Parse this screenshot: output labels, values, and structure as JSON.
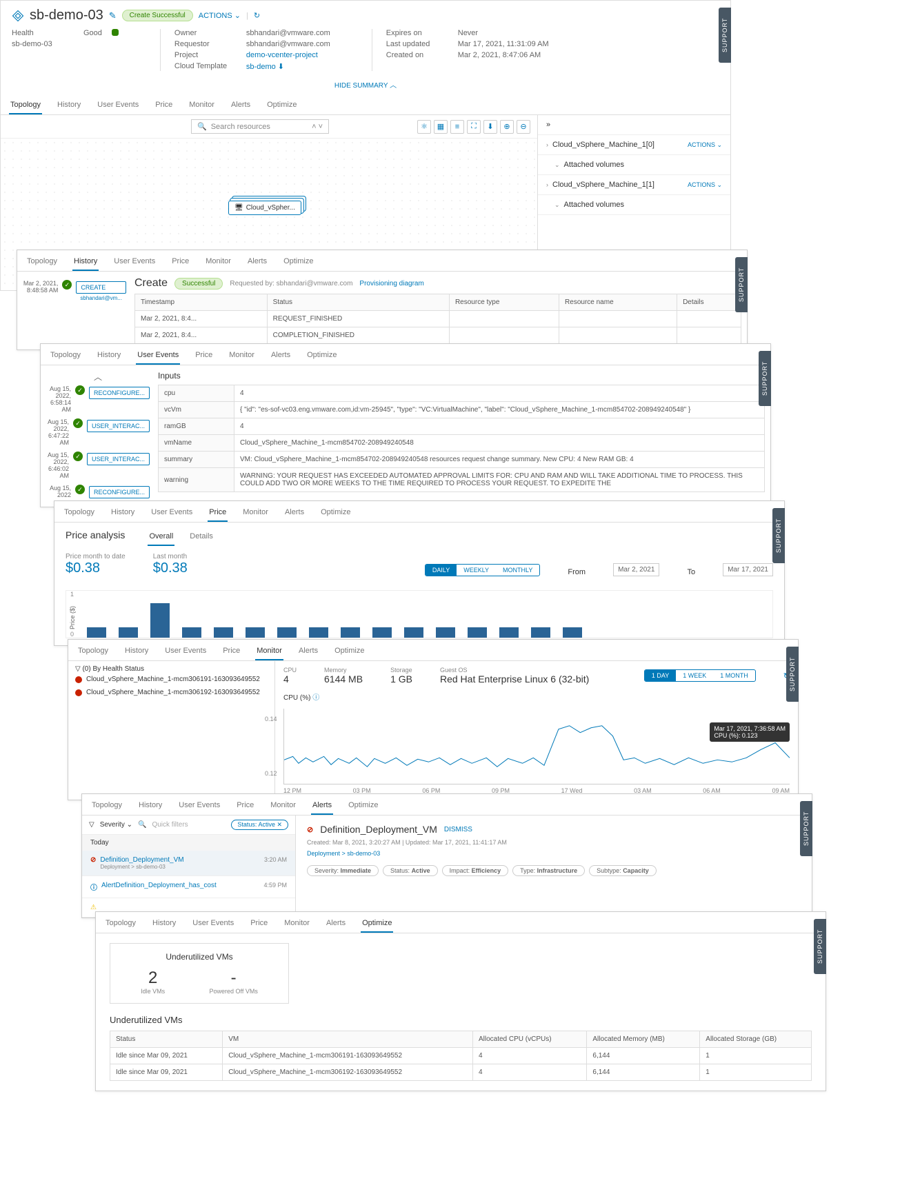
{
  "header": {
    "title": "sb-demo-03",
    "status_pill": "Create Successful",
    "actions_label": "ACTIONS",
    "health_label": "Health",
    "health_value": "Good",
    "sub_name": "sb-demo-03",
    "owner_label": "Owner",
    "owner_value": "sbhandari@vmware.com",
    "requestor_label": "Requestor",
    "requestor_value": "sbhandari@vmware.com",
    "project_label": "Project",
    "project_value": "demo-vcenter-project",
    "template_label": "Cloud Template",
    "template_value": "sb-demo",
    "expires_label": "Expires on",
    "expires_value": "Never",
    "updated_label": "Last updated",
    "updated_value": "Mar 17, 2021, 11:31:09 AM",
    "created_label": "Created on",
    "created_value": "Mar 2, 2021, 8:47:06 AM",
    "hide_summary": "HIDE SUMMARY"
  },
  "tabs": [
    "Topology",
    "History",
    "User Events",
    "Price",
    "Monitor",
    "Alerts",
    "Optimize"
  ],
  "topology": {
    "search_placeholder": "Search resources",
    "node_label": "Cloud_vSpher...",
    "right_items": [
      {
        "label": "Cloud_vSphere_Machine_1[0]",
        "action": "ACTIONS"
      },
      {
        "label": "Attached volumes",
        "sub": true
      },
      {
        "label": "Cloud_vSphere_Machine_1[1]",
        "action": "ACTIONS"
      },
      {
        "label": "Attached volumes",
        "sub": true
      }
    ]
  },
  "history": {
    "create_title": "Create",
    "create_status": "Successful",
    "requested_by": "Requested by: sbhandari@vmware.com",
    "prov_link": "Provisioning diagram",
    "event_time": "Mar 2, 2021, 8:48:58 AM",
    "event_btn1": "CREATE",
    "event_btn1_sub": "sbhandari@vm...",
    "columns": [
      "Timestamp",
      "Status",
      "Resource type",
      "Resource name",
      "Details"
    ],
    "rows": [
      [
        "Mar 2, 2021, 8:4...",
        "REQUEST_FINISHED",
        "",
        "",
        ""
      ],
      [
        "Mar 2, 2021, 8:4...",
        "COMPLETION_FINISHED",
        "",
        "",
        ""
      ]
    ]
  },
  "user_events": {
    "events": [
      {
        "time": "Aug 15, 2022, 6:58:14 AM",
        "label": "RECONFIGURE..."
      },
      {
        "time": "Aug 15, 2022, 6:47:22 AM",
        "label": "USER_INTERAC..."
      },
      {
        "time": "Aug 15, 2022, 6:46:02 AM",
        "label": "USER_INTERAC..."
      },
      {
        "time": "Aug 15, 2022",
        "label": "RECONFIGURE..."
      }
    ],
    "inputs_title": "Inputs",
    "inputs": [
      {
        "k": "cpu",
        "v": "4"
      },
      {
        "k": "vcVm",
        "v": "{ \"id\": \"es-sof-vc03.eng.vmware.com,id:vm-25945\", \"type\": \"VC:VirtualMachine\", \"label\": \"Cloud_vSphere_Machine_1-mcm854702-208949240548\" }"
      },
      {
        "k": "ramGB",
        "v": "4"
      },
      {
        "k": "vmName",
        "v": "Cloud_vSphere_Machine_1-mcm854702-208949240548"
      },
      {
        "k": "summary",
        "v": "VM: Cloud_vSphere_Machine_1-mcm854702-208949240548 resources request change summary. New CPU: 4 New RAM GB: 4"
      },
      {
        "k": "warning",
        "v": "WARNING: YOUR REQUEST HAS EXCEEDED AUTOMATED APPROVAL LIMITS FOR: CPU AND RAM AND WILL TAKE ADDITIONAL TIME TO PROCESS. THIS COULD ADD TWO OR MORE WEEKS TO THE TIME REQUIRED TO PROCESS YOUR REQUEST. TO EXPEDITE THE"
      }
    ]
  },
  "price": {
    "title": "Price analysis",
    "sub_tabs": [
      "Overall",
      "Details"
    ],
    "mtd_label": "Price month to date",
    "mtd_value": "$0.38",
    "last_label": "Last month",
    "last_value": "$0.38",
    "ranges": [
      "DAILY",
      "WEEKLY",
      "MONTHLY"
    ],
    "from_label": "From",
    "from_value": "Mar 2, 2021",
    "to_label": "To",
    "to_value": "Mar 17, 2021",
    "y_label": "Price ($)",
    "y_ticks": [
      "1",
      "0"
    ],
    "bar_heights": [
      0.3,
      0.3,
      1.0,
      0.3,
      0.3,
      0.3,
      0.3,
      0.3,
      0.3,
      0.3,
      0.3,
      0.3,
      0.3,
      0.3,
      0.3,
      0.3
    ],
    "bar_color": "#2a6496"
  },
  "monitor": {
    "filter_label": "(0) By Health Status",
    "vms": [
      "Cloud_vSphere_Machine_1-mcm306191-163093649552",
      "Cloud_vSphere_Machine_1-mcm306192-163093649552"
    ],
    "stats": [
      {
        "label": "CPU",
        "value": "4"
      },
      {
        "label": "Memory",
        "value": "6144 MB"
      },
      {
        "label": "Storage",
        "value": "1 GB"
      },
      {
        "label": "Guest OS",
        "value": "Red Hat Enterprise Linux 6 (32-bit)"
      }
    ],
    "ranges": [
      "1 DAY",
      "1 WEEK",
      "1 MONTH"
    ],
    "chart_title": "CPU (%)",
    "y_ticks": [
      "0.14",
      "0.12"
    ],
    "x_ticks": [
      "12 PM",
      "03 PM",
      "06 PM",
      "09 PM",
      "17 Wed",
      "03 AM",
      "06 AM",
      "09 AM"
    ],
    "tooltip_time": "Mar 17, 2021, 7:36:58 AM",
    "tooltip_val": "CPU (%): 0.123",
    "line_color": "#0079b8",
    "ylim": [
      0.11,
      0.15
    ]
  },
  "alerts": {
    "severity_label": "Severity",
    "quick_filters": "Quick filters",
    "status_chip": "Status: Active",
    "today": "Today",
    "items": [
      {
        "icon": "warn",
        "title": "Definition_Deployment_VM",
        "sub": "Deployment > sb-demo-03",
        "time": "3:20 AM"
      },
      {
        "icon": "info",
        "title": "AlertDefinition_Deployment_has_cost",
        "sub": "",
        "time": "4:59 PM"
      },
      {
        "icon": "tri",
        "title": "",
        "sub": "",
        "time": ""
      }
    ],
    "detail": {
      "title": "Definition_Deployment_VM",
      "dismiss": "DISMISS",
      "created": "Created: Mar 8, 2021, 3:20:27 AM  |  Updated: Mar 17, 2021, 11:41:17 AM",
      "breadcrumb": "Deployment > sb-demo-03",
      "tags": [
        {
          "k": "Severity:",
          "v": "Immediate"
        },
        {
          "k": "Status:",
          "v": "Active"
        },
        {
          "k": "Impact:",
          "v": "Efficiency"
        },
        {
          "k": "Type:",
          "v": "Infrastructure"
        },
        {
          "k": "Subtype:",
          "v": "Capacity"
        }
      ]
    }
  },
  "optimize": {
    "card_title": "Underutilized VMs",
    "idle_count": "2",
    "idle_label": "Idle VMs",
    "off_count": "-",
    "off_label": "Powered Off VMs",
    "table_title": "Underutilized VMs",
    "columns": [
      "Status",
      "VM",
      "Allocated CPU (vCPUs)",
      "Allocated Memory (MB)",
      "Allocated Storage (GB)"
    ],
    "rows": [
      [
        "Idle since Mar 09, 2021",
        "Cloud_vSphere_Machine_1-mcm306191-163093649552",
        "4",
        "6,144",
        "1"
      ],
      [
        "Idle since Mar 09, 2021",
        "Cloud_vSphere_Machine_1-mcm306192-163093649552",
        "4",
        "6,144",
        "1"
      ]
    ]
  },
  "support_label": "SUPPORT"
}
